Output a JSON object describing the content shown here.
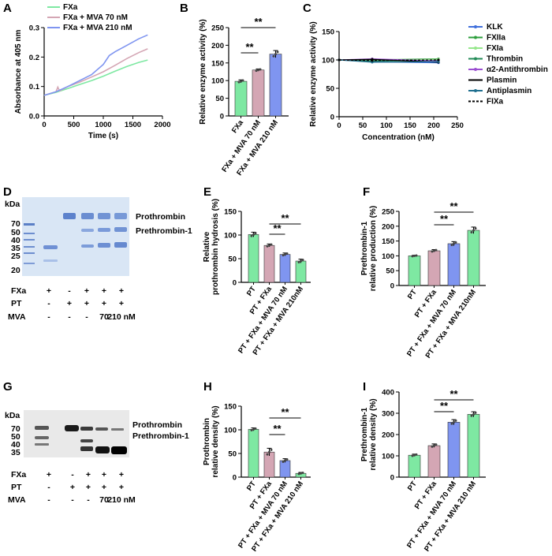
{
  "colors": {
    "green": "#7ee8a2",
    "pink": "#d4a6b4",
    "blue": "#7f95f0",
    "white": "#ffffff",
    "gel_blue": "#8fb0e2",
    "gel_bg": "#d9e6f5",
    "blot_bg": "#e9e9e9"
  },
  "panels": {
    "A": "A",
    "B": "B",
    "C": "C",
    "D": "D",
    "E": "E",
    "F": "F",
    "G": "G",
    "H": "H",
    "I": "I"
  },
  "chart_data": [
    {
      "id": "A",
      "type": "line",
      "xlabel": "Time (s)",
      "ylabel": "Absorbance at 405 nm",
      "xlim": [
        0,
        2000
      ],
      "ylim": [
        0,
        0.3
      ],
      "xticks": [
        "0",
        "500",
        "1000",
        "1500",
        "2000"
      ],
      "yticks": [
        "0.0",
        "0.1",
        "0.2",
        "0.3"
      ],
      "legend": [
        "FXa",
        "FXa + MVA 70 nM",
        "FXa + MVA 210 nM"
      ],
      "series": [
        {
          "name": "FXa",
          "color": "green",
          "x": [
            0,
            200,
            400,
            600,
            800,
            1000,
            1200,
            1400,
            1600,
            1750
          ],
          "y": [
            0.07,
            0.08,
            0.093,
            0.107,
            0.12,
            0.135,
            0.152,
            0.168,
            0.182,
            0.19
          ]
        },
        {
          "name": "FXa + MVA 70 nM",
          "color": "pink",
          "x": [
            0,
            200,
            230,
            260,
            400,
            600,
            800,
            1000,
            1200,
            1400,
            1600,
            1750
          ],
          "y": [
            0.07,
            0.082,
            0.098,
            0.085,
            0.1,
            0.115,
            0.132,
            0.15,
            0.172,
            0.195,
            0.215,
            0.228
          ]
        },
        {
          "name": "FXa + MVA 210 nM",
          "color": "blue",
          "x": [
            0,
            200,
            400,
            600,
            800,
            1000,
            1100,
            1200,
            1400,
            1600,
            1750
          ],
          "y": [
            0.07,
            0.082,
            0.1,
            0.12,
            0.14,
            0.175,
            0.205,
            0.218,
            0.24,
            0.262,
            0.275
          ]
        }
      ]
    },
    {
      "id": "B",
      "type": "bar",
      "ylabel": "Relative enzyme activity (%)",
      "ylim": [
        0,
        250
      ],
      "yticks": [
        "0",
        "50",
        "100",
        "150",
        "200",
        "250"
      ],
      "categories": [
        "FXa",
        "FXa + MVA 70 nM",
        "FXa + MVA 210 nM"
      ],
      "values": [
        98,
        130,
        175
      ],
      "errors": [
        4,
        3,
        10
      ],
      "colors": [
        "green",
        "pink",
        "blue"
      ],
      "sig": [
        "**",
        "**"
      ]
    },
    {
      "id": "C",
      "type": "line",
      "xlabel": "Concentration (nM)",
      "ylabel": "Relative enzyme activity (%)",
      "xlim": [
        0,
        250
      ],
      "ylim": [
        0,
        150
      ],
      "xticks": [
        "0",
        "50",
        "100",
        "150",
        "200",
        "250"
      ],
      "yticks": [
        "0",
        "50",
        "100",
        "150"
      ],
      "legend": [
        "KLK",
        "FXIIa",
        "FXIa",
        "Thrombin",
        "α2-Antithrombin",
        "Plasmin",
        "Antiplasmin",
        "FIXa"
      ],
      "series": [
        {
          "name": "KLK",
          "color": "#3f6fdc",
          "x": [
            0,
            70,
            210
          ],
          "y": [
            100,
            97,
            95
          ]
        },
        {
          "name": "FXIIa",
          "color": "#2d9e3c",
          "x": [
            0,
            70,
            210
          ],
          "y": [
            100,
            100,
            102
          ]
        },
        {
          "name": "FXIa",
          "color": "#96e78c",
          "x": [
            0,
            70,
            210
          ],
          "y": [
            100,
            99,
            101
          ]
        },
        {
          "name": "Thrombin",
          "color": "#238b57",
          "x": [
            0,
            70,
            210
          ],
          "y": [
            100,
            98,
            99
          ]
        },
        {
          "name": "α2-Antithrombin",
          "color": "#9b4fd1",
          "x": [
            0,
            70,
            210
          ],
          "y": [
            100,
            102,
            98
          ]
        },
        {
          "name": "Plasmin",
          "color": "#000000",
          "x": [
            0,
            70,
            210
          ],
          "y": [
            100,
            101,
            96
          ]
        },
        {
          "name": "Antiplasmin",
          "color": "#1f6f8f",
          "x": [
            0,
            70,
            210
          ],
          "y": [
            100,
            96,
            97
          ]
        },
        {
          "name": "FIXa",
          "color": "#000000",
          "x": [
            0,
            70,
            210
          ],
          "y": [
            100,
            99,
            100
          ]
        }
      ]
    },
    {
      "id": "E",
      "type": "bar",
      "ylabel": "Relative prothrombin hydrosis (%)",
      "ylim": [
        0,
        150
      ],
      "yticks": [
        "0",
        "50",
        "100",
        "150"
      ],
      "categories": [
        "PT",
        "PT + FXa",
        "PT + FXa + MVA 70 nM",
        "PT + FXa + MVA 210nM"
      ],
      "values": [
        101,
        78,
        59,
        45
      ],
      "errors": [
        5,
        3,
        3,
        4
      ],
      "colors": [
        "green",
        "pink",
        "blue",
        "green"
      ],
      "sig": [
        "**",
        "**"
      ]
    },
    {
      "id": "F",
      "type": "bar",
      "ylabel": "Prethrombin-1 relative production (%)",
      "ylim": [
        0,
        250
      ],
      "yticks": [
        "0",
        "50",
        "100",
        "150",
        "200",
        "250"
      ],
      "categories": [
        "PT",
        "PT + FXa",
        "PT + FXa + MVA 70 nM",
        "PT + FXa + MVA 210nM"
      ],
      "values": [
        100,
        117,
        141,
        186
      ],
      "errors": [
        2,
        4,
        7,
        11
      ],
      "colors": [
        "green",
        "pink",
        "blue",
        "green"
      ],
      "sig": [
        "**",
        "**"
      ]
    },
    {
      "id": "H",
      "type": "bar",
      "ylabel": "Prothrombin relative density (%)",
      "ylim": [
        0,
        150
      ],
      "yticks": [
        "0",
        "50",
        "100",
        "150"
      ],
      "categories": [
        "PT",
        "PT + FXa",
        "PT + FXa + MVA 70 nM",
        "PT + FXa + MVA 210 nM"
      ],
      "values": [
        101,
        53,
        35,
        8
      ],
      "errors": [
        3,
        8,
        4,
        2
      ],
      "colors": [
        "green",
        "pink",
        "blue",
        "green"
      ],
      "sig": [
        "**",
        "**"
      ]
    },
    {
      "id": "I",
      "type": "bar",
      "ylabel": "Prethrombin-1 relative density (%)",
      "ylim": [
        0,
        400
      ],
      "yticks": [
        "0",
        "100",
        "200",
        "300",
        "400"
      ],
      "categories": [
        "PT",
        "PT + FXa",
        "PT + FXa + MVA 70 nM",
        "PT + FXa + MVA 210 nM"
      ],
      "values": [
        103,
        148,
        258,
        295
      ],
      "errors": [
        5,
        8,
        12,
        12
      ],
      "colors": [
        "green",
        "pink",
        "blue",
        "green"
      ],
      "sig": [
        "**",
        "**"
      ]
    }
  ],
  "gels": {
    "D": {
      "kda_label": "kDa",
      "markers": [
        "70",
        "50",
        "40",
        "35",
        "25",
        "20"
      ],
      "band_labels": [
        "Prothrombin",
        "Prethrombin-1"
      ],
      "rows": [
        {
          "label": "FXa",
          "cells": [
            "+",
            "-",
            "+",
            "+",
            "+"
          ]
        },
        {
          "label": "PT",
          "cells": [
            "-",
            "+",
            "+",
            "+",
            "+"
          ]
        },
        {
          "label": "MVA",
          "cells": [
            "-",
            "-",
            "-",
            "70",
            "210 nM"
          ]
        }
      ]
    },
    "G": {
      "kda_label": "kDa",
      "markers": [
        "70",
        "50",
        "40",
        "35"
      ],
      "band_labels": [
        "Prothrombin",
        "Prethrombin-1"
      ],
      "rows": [
        {
          "label": "FXa",
          "cells": [
            "+",
            "-",
            "+",
            "+",
            "+"
          ]
        },
        {
          "label": "PT",
          "cells": [
            "-",
            "+",
            "+",
            "+",
            "+"
          ]
        },
        {
          "label": "MVA",
          "cells": [
            "-",
            "-",
            "-",
            "70",
            "210 nM"
          ]
        }
      ]
    }
  }
}
